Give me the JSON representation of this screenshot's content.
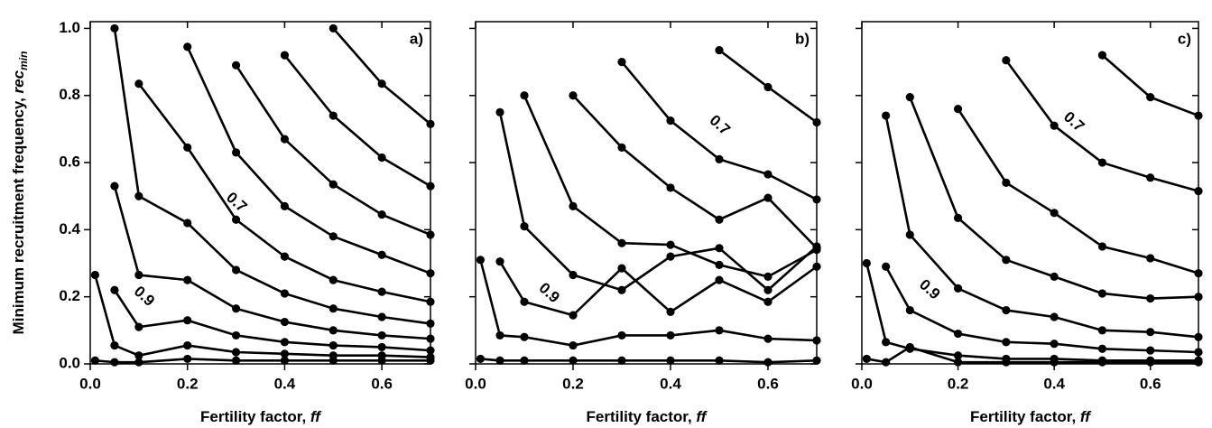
{
  "chart_data": [
    {
      "type": "line",
      "panel_label": "a)",
      "x": [
        0.01,
        0.05,
        0.1,
        0.2,
        0.3,
        0.4,
        0.5,
        0.6,
        0.7
      ],
      "series": [
        {
          "color": "#000000",
          "values": [
            null,
            null,
            null,
            null,
            null,
            null,
            1.0,
            0.835,
            0.715
          ]
        },
        {
          "color": "#000000",
          "values": [
            null,
            null,
            null,
            null,
            null,
            0.92,
            0.74,
            0.615,
            0.53
          ]
        },
        {
          "color": "#000000",
          "values": [
            null,
            null,
            null,
            null,
            0.89,
            0.67,
            0.535,
            0.445,
            0.385
          ]
        },
        {
          "color": "#000000",
          "values": [
            null,
            null,
            null,
            0.945,
            0.63,
            0.47,
            0.38,
            0.325,
            0.27
          ]
        },
        {
          "color": "#000000",
          "values": [
            null,
            null,
            0.835,
            0.645,
            0.43,
            0.32,
            0.25,
            0.215,
            0.185
          ]
        },
        {
          "color": "#000000",
          "values": [
            null,
            1.0,
            0.5,
            0.42,
            0.28,
            0.21,
            0.165,
            0.14,
            0.12
          ]
        },
        {
          "color": "#000000",
          "values": [
            null,
            0.53,
            0.265,
            0.25,
            0.165,
            0.125,
            0.1,
            0.085,
            0.075
          ]
        },
        {
          "color": "#000000",
          "values": [
            null,
            0.22,
            0.11,
            0.13,
            0.085,
            0.065,
            0.055,
            0.05,
            0.04
          ]
        },
        {
          "color": "#000000",
          "values": [
            0.265,
            0.055,
            0.025,
            0.055,
            0.035,
            0.03,
            0.025,
            0.025,
            0.02
          ]
        },
        {
          "color": "#000000",
          "values": [
            0.01,
            0.005,
            0.005,
            0.015,
            0.01,
            0.01,
            0.01,
            0.01,
            0.01
          ]
        }
      ],
      "annotations": [
        {
          "text": "0.7",
          "x": 0.3,
          "y": 0.48
        },
        {
          "text": "0.9",
          "x": 0.11,
          "y": 0.2
        }
      ],
      "xlim": [
        0,
        0.7
      ],
      "ylim": [
        0,
        1.02
      ],
      "xticks": [
        {
          "value": 0,
          "label": "0.0"
        },
        0.2,
        0.4,
        0.6
      ],
      "yticks": [
        {
          "value": 0,
          "label": "0.0"
        },
        0.2,
        0.4,
        0.6,
        0.8,
        {
          "value": 1,
          "label": "1.0"
        }
      ],
      "ytick_labels": true,
      "x_label": "Fertility factor, ",
      "x_label_var": "ff",
      "y_label": "Minimum recruitment frequency, ",
      "y_label_var": "rec",
      "y_label_sub": "min"
    },
    {
      "type": "line",
      "panel_label": "b)",
      "x": [
        0.01,
        0.05,
        0.1,
        0.2,
        0.3,
        0.4,
        0.5,
        0.6,
        0.7
      ],
      "series": [
        {
          "color": "#000000",
          "values": [
            null,
            null,
            null,
            null,
            null,
            null,
            0.935,
            0.825,
            0.72
          ]
        },
        {
          "color": "#000000",
          "values": [
            null,
            null,
            null,
            null,
            0.9,
            0.725,
            0.61,
            0.565,
            0.49
          ]
        },
        {
          "color": "#000000",
          "values": [
            null,
            null,
            null,
            0.8,
            0.645,
            0.525,
            0.43,
            0.495,
            0.345
          ]
        },
        {
          "color": "#000000",
          "values": [
            null,
            null,
            0.8,
            0.47,
            0.36,
            0.355,
            0.295,
            0.26,
            0.34
          ]
        },
        {
          "color": "#000000",
          "values": [
            null,
            0.75,
            0.41,
            0.265,
            0.22,
            0.32,
            0.345,
            0.22,
            0.35
          ]
        },
        {
          "color": "#000000",
          "values": [
            null,
            0.305,
            0.185,
            0.145,
            0.285,
            0.155,
            0.25,
            0.185,
            0.29
          ]
        },
        {
          "color": "#000000",
          "values": [
            0.31,
            0.085,
            0.08,
            0.055,
            0.085,
            0.085,
            0.1,
            0.075,
            0.07
          ]
        },
        {
          "color": "#000000",
          "values": [
            0.015,
            0.01,
            0.01,
            0.01,
            0.01,
            0.01,
            0.01,
            0.005,
            0.01
          ]
        }
      ],
      "annotations": [
        {
          "text": "0.7",
          "x": 0.5,
          "y": 0.71
        },
        {
          "text": "0.9",
          "x": 0.15,
          "y": 0.21
        }
      ],
      "xlim": [
        0,
        0.7
      ],
      "ylim": [
        0,
        1.02
      ],
      "xticks": [
        {
          "value": 0,
          "label": "0.0"
        },
        0.2,
        0.4,
        0.6
      ],
      "yticks": [
        0,
        0.2,
        0.4,
        0.6,
        0.8,
        1
      ],
      "ytick_labels": false,
      "x_label": "Fertility factor, ",
      "x_label_var": "ff"
    },
    {
      "type": "line",
      "panel_label": "c)",
      "x": [
        0.01,
        0.05,
        0.1,
        0.2,
        0.3,
        0.4,
        0.5,
        0.6,
        0.7
      ],
      "series": [
        {
          "color": "#000000",
          "values": [
            null,
            null,
            null,
            null,
            null,
            null,
            0.92,
            0.795,
            0.74
          ]
        },
        {
          "color": "#000000",
          "values": [
            null,
            null,
            null,
            null,
            0.905,
            0.71,
            0.6,
            0.555,
            0.515
          ]
        },
        {
          "color": "#000000",
          "values": [
            null,
            null,
            null,
            0.76,
            0.54,
            0.45,
            0.35,
            0.315,
            0.27
          ]
        },
        {
          "color": "#000000",
          "values": [
            null,
            null,
            0.795,
            0.435,
            0.31,
            0.26,
            0.21,
            0.195,
            0.2
          ]
        },
        {
          "color": "#000000",
          "values": [
            null,
            0.74,
            0.385,
            0.225,
            0.16,
            0.14,
            0.1,
            0.095,
            0.08
          ]
        },
        {
          "color": "#000000",
          "values": [
            null,
            0.29,
            0.16,
            0.09,
            0.065,
            0.06,
            0.045,
            0.04,
            0.035
          ]
        },
        {
          "color": "#000000",
          "values": [
            0.3,
            0.065,
            0.045,
            0.025,
            0.015,
            0.015,
            0.01,
            0.01,
            0.01
          ]
        },
        {
          "color": "#000000",
          "values": [
            0.015,
            0.005,
            0.05,
            0.005,
            0.005,
            0.005,
            0.005,
            0.005,
            0.005
          ]
        }
      ],
      "annotations": [
        {
          "text": "0.7",
          "x": 0.44,
          "y": 0.72
        },
        {
          "text": "0.9",
          "x": 0.14,
          "y": 0.22
        }
      ],
      "xlim": [
        0,
        0.7
      ],
      "ylim": [
        0,
        1.02
      ],
      "xticks": [
        {
          "value": 0,
          "label": "0.0"
        },
        0.2,
        0.4,
        0.6
      ],
      "yticks": [
        0,
        0.2,
        0.4,
        0.6,
        0.8,
        1
      ],
      "ytick_labels": false,
      "x_label": "Fertility factor, ",
      "x_label_var": "ff"
    }
  ]
}
